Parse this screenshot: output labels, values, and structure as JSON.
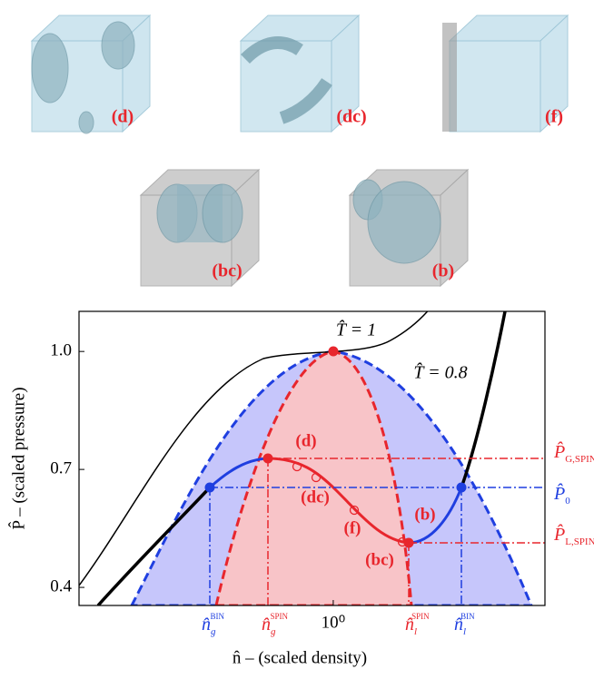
{
  "panels": [
    {
      "label": "(d)"
    },
    {
      "label": "(dc)"
    },
    {
      "label": "(f)"
    },
    {
      "label": "(bc)"
    },
    {
      "label": "(b)"
    }
  ],
  "chart_data": {
    "type": "line",
    "x_label": "n̂ – (scaled density)",
    "y_label": "P̂ – (scaled pressure)",
    "xscale": "log",
    "xlim": [
      0.2,
      3.82
    ],
    "xticks": [
      {
        "value": 1,
        "label": "10⁰"
      }
    ],
    "ylim": [
      0.354,
      1.102
    ],
    "yticks": [
      0.4,
      0.7,
      {
        "value": 1,
        "label": "1.0"
      }
    ],
    "isotherm_labels": [
      "T̂ = 1",
      "T̂ = 0.8"
    ],
    "state_labels": [
      "(d)",
      "(dc)",
      "(f)",
      "(b)",
      "(bc)"
    ],
    "pressure_labels": [
      {
        "base": "P̂",
        "sub": "G,SPIN"
      },
      {
        "base": "P̂",
        "sub": "0"
      },
      {
        "base": "P̂",
        "sub": "L,SPIN"
      }
    ],
    "density_labels": [
      {
        "base": "n̂",
        "sub": "g",
        "sup": "BIN"
      },
      {
        "base": "n̂",
        "sub": "g",
        "sup": "SPIN"
      },
      {
        "base": "n̂",
        "sub": "l",
        "sup": "SPIN"
      },
      {
        "base": "n̂",
        "sub": "l",
        "sup": "BIN"
      }
    ]
  }
}
